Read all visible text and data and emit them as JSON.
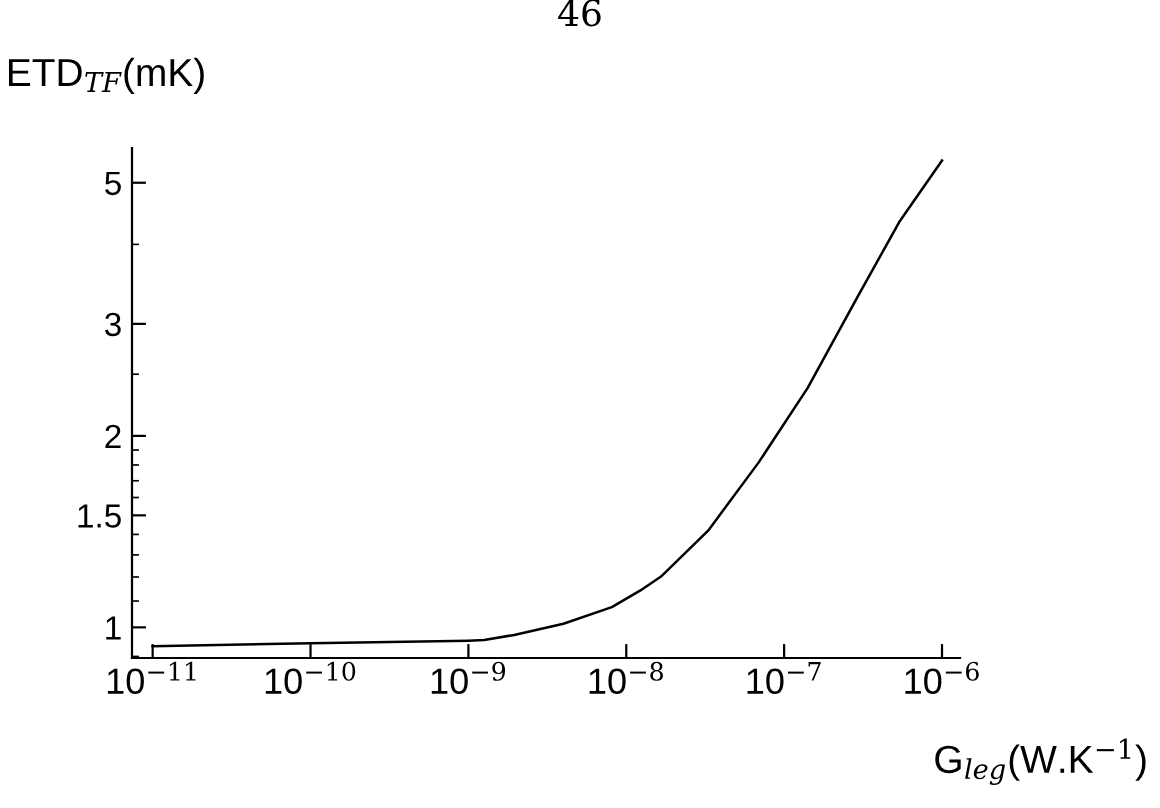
{
  "chart_data": {
    "type": "line",
    "xlabel": "G$_{leg}$(W.K$^{−1}$)",
    "ylabel": "ETD$_{TF}$(mK)",
    "annotations": [
      "46"
    ],
    "log": "xy",
    "series": [
      {
        "color": "#000000",
        "x": [
          1e-11,
          1e-10,
          1e-09,
          1.26e-09,
          1.95e-09,
          4e-09,
          8.1e-09,
          1.23e-08,
          1.66e-08,
          3.3e-08,
          6.9e-08,
          1.41e-07,
          2.9e-07,
          5.4e-07,
          1e-06
        ],
        "values": [
          0.934,
          0.944,
          0.953,
          0.955,
          0.973,
          1.013,
          1.076,
          1.143,
          1.202,
          1.419,
          1.817,
          2.38,
          3.3,
          4.35,
          5.42
        ]
      }
    ],
    "xlim": [
      7.4e-12,
      1.3e-06
    ],
    "ylim": [
      0.895,
      5.67
    ],
    "xticks": [
      {
        "value": 1e-11,
        "label": "10$^{−11}$"
      },
      {
        "value": 1e-10,
        "label": "10$^{−10}$"
      },
      {
        "value": 1e-09,
        "label": "10$^{−9}$"
      },
      {
        "value": 1e-08,
        "label": "10$^{−8}$"
      },
      {
        "value": 1e-07,
        "label": "10$^{−7}$"
      },
      {
        "value": 1e-06,
        "label": "10$^{−6}$"
      }
    ],
    "yticks": [
      {
        "value": 0.9,
        "label": null
      },
      1,
      {
        "value": 1.1,
        "label": null
      },
      {
        "value": 1.2,
        "label": null
      },
      {
        "value": 1.3,
        "label": null
      },
      {
        "value": 1.4,
        "label": null
      },
      1.5,
      {
        "value": 1.6,
        "label": null
      },
      {
        "value": 1.7,
        "label": null
      },
      {
        "value": 1.8,
        "label": null
      },
      {
        "value": 1.9,
        "label": null
      },
      2,
      {
        "value": 2.5,
        "label": null
      },
      3,
      {
        "value": 4,
        "label": null
      },
      5
    ],
    "grid": false,
    "legend": false,
    "marker": "none",
    "line_style": "solid"
  }
}
